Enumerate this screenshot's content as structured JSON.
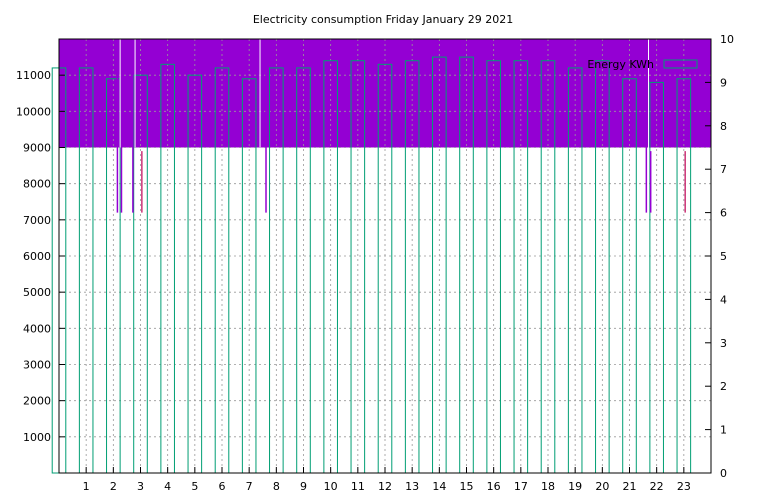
{
  "chart_data": {
    "type": "bar",
    "title": "Electricity consumption Friday January 29 2021",
    "xlabel": "",
    "ylabel": "",
    "x_ticks": [
      "1",
      "2",
      "3",
      "4",
      "5",
      "6",
      "7",
      "8",
      "9",
      "10",
      "11",
      "12",
      "13",
      "14",
      "15",
      "16",
      "17",
      "18",
      "19",
      "20",
      "21",
      "22",
      "23"
    ],
    "y_ticks": [
      1000,
      2000,
      3000,
      4000,
      5000,
      6000,
      7000,
      8000,
      9000,
      10000,
      11000
    ],
    "y2_ticks": [
      0,
      1,
      2,
      3,
      4,
      5,
      6,
      7,
      8,
      9,
      10
    ],
    "ylim": [
      0,
      12000
    ],
    "y2lim": [
      0,
      10
    ],
    "xlim": [
      0,
      24
    ],
    "grid": true,
    "legend_position": "top-right",
    "legend_label": "Energy KWh",
    "band_range": [
      9000,
      12000
    ],
    "colors": {
      "band": "#9400d3",
      "bar": "#009e73",
      "spike": "#9400d3",
      "grid": "#999999"
    },
    "series": [
      {
        "name": "Energy KWh",
        "x": [
          0,
          1,
          2,
          3,
          4,
          5,
          6,
          7,
          8,
          9,
          10,
          11,
          12,
          13,
          14,
          15,
          16,
          17,
          18,
          19,
          20,
          21,
          22,
          23
        ],
        "values": [
          11200,
          11200,
          10900,
          11000,
          11300,
          11000,
          11200,
          10900,
          11200,
          11200,
          11400,
          11400,
          11300,
          11400,
          11500,
          11500,
          11400,
          11400,
          11400,
          11200,
          11400,
          10900,
          10800,
          10900
        ]
      }
    ],
    "spikes": [
      {
        "x": 2.15,
        "top": 11800,
        "bottom": 7200,
        "color": "#9400d3"
      },
      {
        "x": 2.3,
        "top": 11800,
        "bottom": 7200,
        "color": "#9400d3"
      },
      {
        "x": 2.72,
        "top": 11800,
        "bottom": 7200,
        "color": "#9400d3"
      },
      {
        "x": 3.05,
        "top": 8900,
        "bottom": 7200,
        "color": "#cc3377"
      },
      {
        "x": 7.62,
        "top": 11800,
        "bottom": 7200,
        "color": "#9400d3"
      },
      {
        "x": 21.62,
        "top": 11800,
        "bottom": 7200,
        "color": "#9400d3"
      },
      {
        "x": 21.78,
        "top": 8900,
        "bottom": 7200,
        "color": "#9400d3"
      },
      {
        "x": 23.05,
        "top": 8900,
        "bottom": 7200,
        "color": "#cc3377"
      }
    ]
  }
}
